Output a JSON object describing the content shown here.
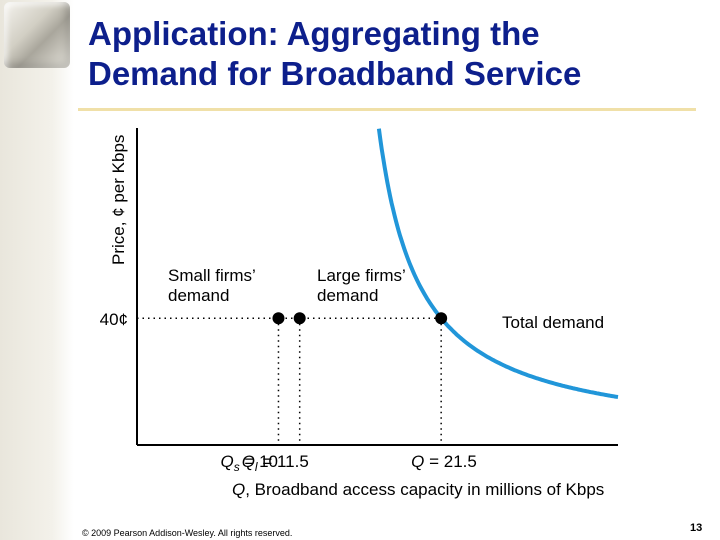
{
  "slide": {
    "title_line1": "Application: Aggregating the",
    "title_line2": "Demand for Broadband Service",
    "footer": "© 2009 Pearson Addison-Wesley. All rights reserved.",
    "page_number": "13"
  },
  "colors": {
    "title": "#0d1f8c",
    "small_firms": "#a6d5ee",
    "large_firms": "#5cb6e6",
    "total": "#2196d9",
    "rule": "#f0e0a8"
  },
  "chart_data": {
    "type": "line",
    "ylabel": "Price, ¢ per Kbps",
    "xlabel": "Q, Broadband access capacity in millions of Kbps",
    "price_label": "40¢",
    "price_level": 40,
    "ylim": [
      0,
      100
    ],
    "xlim": [
      0,
      34
    ],
    "grid": false,
    "series": [
      {
        "key": "small",
        "label_line1": "Small firms’",
        "label_line2": "demand",
        "q_at_40": 10
      },
      {
        "key": "large",
        "label_line1": "Large firms’",
        "label_line2": "demand",
        "q_at_40": 11.5
      },
      {
        "key": "total",
        "label": "Total demand",
        "q_at_40": 21.5
      }
    ],
    "x_markers": [
      {
        "sym": "Q",
        "sub": "s",
        "text": " = 10",
        "q": 10
      },
      {
        "sym": "Q",
        "sub": "l",
        "text": " = 11.5",
        "q": 11.5
      },
      {
        "sym": "Q",
        "sub": "",
        "text": " = 21.5",
        "q": 21.5
      }
    ]
  }
}
